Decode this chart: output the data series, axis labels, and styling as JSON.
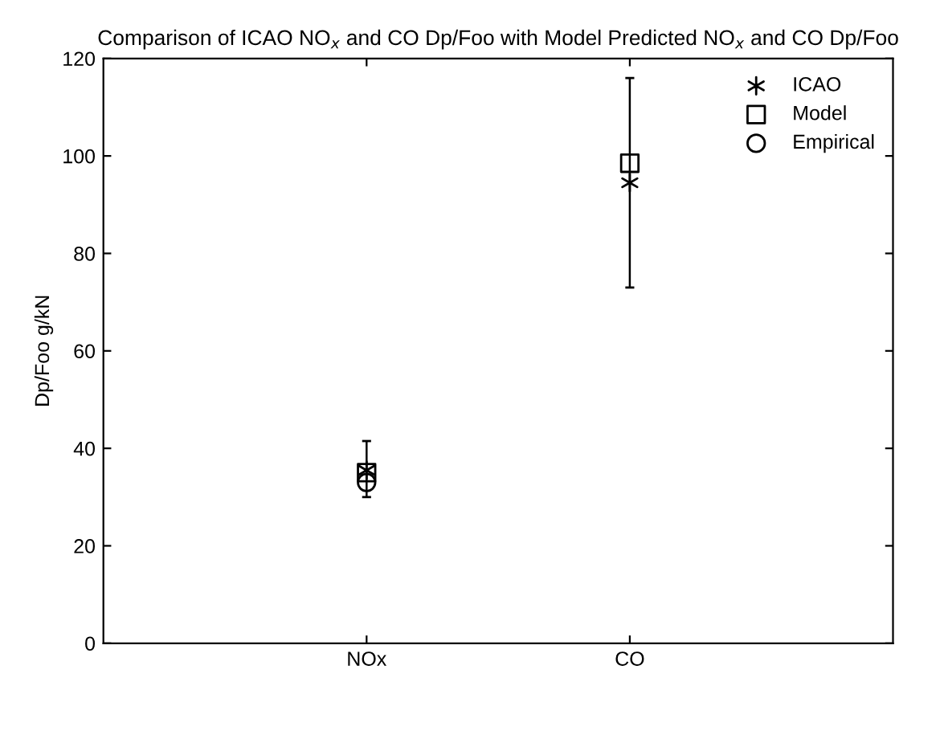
{
  "chart_data": {
    "type": "scatter",
    "title": "Comparison of ICAO NO$_{x}$ and CO Dp/Foo with Model Predicted NO$_{x}$ and CO Dp/Foo",
    "ylabel": "Dp/Foo g/kN",
    "categories": [
      "NOx",
      "CO"
    ],
    "series": [
      {
        "name": "ICAO",
        "color": "#000000",
        "marker": "cross",
        "values": [
          35.5,
          94.5
        ],
        "errors": [
          [
            30,
            41.5
          ],
          [
            73,
            116
          ]
        ]
      },
      {
        "name": "Model",
        "color": "#000000",
        "marker": "square",
        "values": [
          35,
          98.5
        ]
      },
      {
        "name": "Empirical",
        "color": "#000000",
        "marker": "circle",
        "values": [
          33,
          null
        ]
      }
    ],
    "ylim": [
      0,
      120
    ],
    "yticks": [
      0,
      20,
      40,
      60,
      80,
      100,
      120
    ],
    "grid": false,
    "legend": "top right"
  }
}
